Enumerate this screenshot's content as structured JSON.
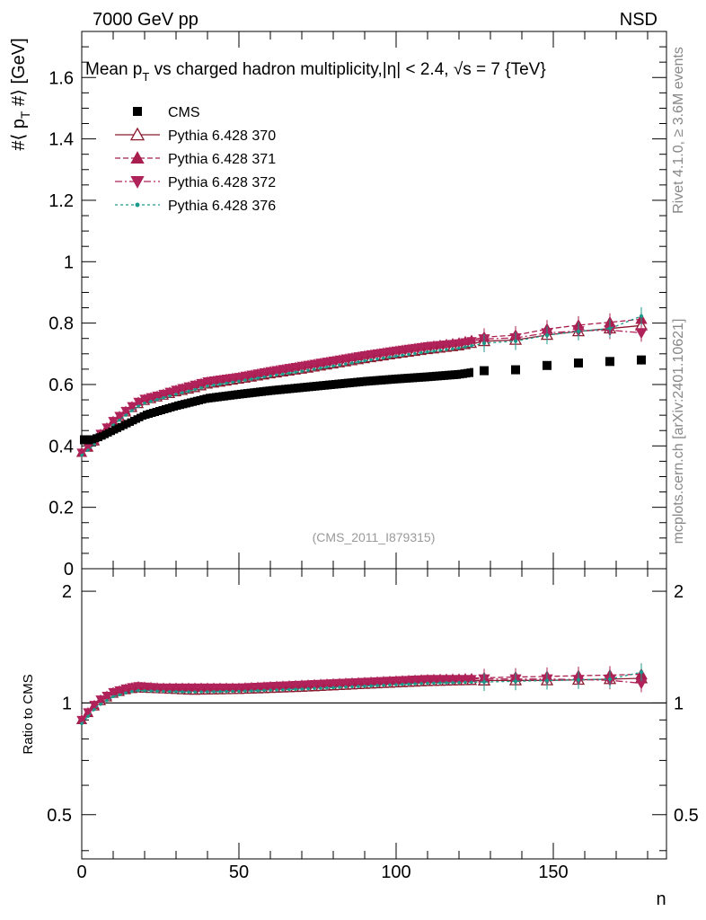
{
  "header": {
    "energy_label": "7000 GeV pp",
    "process_label": "NSD"
  },
  "side_labels": {
    "rivet": "Rivet 4.1.0, ≥ 3.6M events",
    "mcplots": "mcplots.cern.ch [arXiv:2401.10621]"
  },
  "chart_data": [
    {
      "type": "scatter",
      "title": "Mean p_T vs charged hadron multiplicity, |η| < 2.4, √s = 7 {TeV}",
      "title_parts": {
        "a": "Mean p",
        "b": "T",
        "c": " vs charged hadron multiplicity,",
        "d": "|η| < 2.4, √s = 7 {TeV}"
      },
      "xlabel": "n",
      "ylabel": "#⟨ p_T #⟩ [GeV]",
      "ylabel_parts": {
        "a": "#⟨ p",
        "b": "T",
        "c": " #⟩ [GeV]"
      },
      "watermark": "(CMS_2011_I879315)",
      "xlim": [
        0,
        186
      ],
      "ylim": [
        0,
        1.75
      ],
      "x_ticks": [
        0,
        50,
        100,
        150
      ],
      "y_ticks": [
        0,
        0.2,
        0.4,
        0.6,
        0.8,
        1,
        1.2,
        1.4,
        1.6
      ],
      "y_tick_labels": [
        "0",
        "0.2",
        "0.4",
        "0.6",
        "0.8",
        "1",
        "1.2",
        "1.4",
        "1.6"
      ],
      "legend_position": "top-left",
      "legend": [
        "CMS",
        "Pythia 6.428 370",
        "Pythia 6.428 371",
        "Pythia 6.428 372",
        "Pythia 6.428 376"
      ],
      "cms_knots": [
        [
          0,
          0.42
        ],
        [
          3,
          0.42
        ],
        [
          6,
          0.43
        ],
        [
          10,
          0.45
        ],
        [
          15,
          0.475
        ],
        [
          20,
          0.5
        ],
        [
          30,
          0.53
        ],
        [
          40,
          0.555
        ],
        [
          50,
          0.568
        ],
        [
          60,
          0.58
        ],
        [
          70,
          0.59
        ],
        [
          80,
          0.6
        ],
        [
          90,
          0.61
        ],
        [
          100,
          0.618
        ],
        [
          110,
          0.625
        ],
        [
          120,
          0.633
        ],
        [
          128,
          0.645
        ],
        [
          138,
          0.648
        ],
        [
          148,
          0.662
        ],
        [
          158,
          0.67
        ],
        [
          168,
          0.675
        ],
        [
          178,
          0.68
        ]
      ],
      "cms_wide_points": [
        [
          128,
          0.645
        ],
        [
          138,
          0.648
        ],
        [
          148,
          0.662
        ],
        [
          158,
          0.67
        ],
        [
          168,
          0.675
        ],
        [
          178,
          0.68
        ]
      ],
      "series": [
        {
          "name": "Pythia 6.428 370",
          "color": "#8b1a2e",
          "marker": "open-triangle",
          "dash": "",
          "ratio": [
            [
              0,
              0.9
            ],
            [
              5,
              1.0
            ],
            [
              10,
              1.06
            ],
            [
              15,
              1.09
            ],
            [
              18,
              1.095
            ],
            [
              25,
              1.09
            ],
            [
              35,
              1.08
            ],
            [
              50,
              1.085
            ],
            [
              70,
              1.1
            ],
            [
              90,
              1.12
            ],
            [
              110,
              1.14
            ],
            [
              130,
              1.15
            ],
            [
              150,
              1.15
            ],
            [
              170,
              1.16
            ],
            [
              178,
              1.165
            ]
          ],
          "wide_x": [
            128,
            138,
            148,
            158,
            168,
            178
          ]
        },
        {
          "name": "Pythia 6.428 371",
          "color": "#a81e4e",
          "marker": "triangle-up",
          "dash": "6,3",
          "ratio": [
            [
              0,
              0.9
            ],
            [
              5,
              1.01
            ],
            [
              10,
              1.07
            ],
            [
              15,
              1.1
            ],
            [
              18,
              1.11
            ],
            [
              25,
              1.1
            ],
            [
              35,
              1.1
            ],
            [
              50,
              1.1
            ],
            [
              70,
              1.12
            ],
            [
              90,
              1.14
            ],
            [
              110,
              1.16
            ],
            [
              130,
              1.17
            ],
            [
              150,
              1.18
            ],
            [
              170,
              1.19
            ],
            [
              178,
              1.195
            ]
          ],
          "wide_x": [
            128,
            138,
            148,
            158,
            168,
            178
          ]
        },
        {
          "name": "Pythia 6.428 372",
          "color": "#b0225a",
          "marker": "triangle-down",
          "dash": "8,3,2,3",
          "ratio": [
            [
              0,
              0.9
            ],
            [
              5,
              1.01
            ],
            [
              10,
              1.07
            ],
            [
              15,
              1.1
            ],
            [
              18,
              1.11
            ],
            [
              25,
              1.1
            ],
            [
              35,
              1.1
            ],
            [
              50,
              1.1
            ],
            [
              70,
              1.12
            ],
            [
              90,
              1.14
            ],
            [
              110,
              1.16
            ],
            [
              130,
              1.16
            ],
            [
              150,
              1.16
            ],
            [
              170,
              1.15
            ],
            [
              178,
              1.13
            ]
          ],
          "wide_x": [
            128,
            138,
            148,
            158,
            168,
            178
          ]
        },
        {
          "name": "Pythia 6.428 376",
          "color": "#1a9a8a",
          "marker": "dot",
          "dash": "3,3",
          "ratio": [
            [
              0,
              0.88
            ],
            [
              5,
              0.98
            ],
            [
              10,
              1.04
            ],
            [
              15,
              1.07
            ],
            [
              18,
              1.08
            ],
            [
              25,
              1.075
            ],
            [
              35,
              1.07
            ],
            [
              50,
              1.075
            ],
            [
              70,
              1.09
            ],
            [
              90,
              1.11
            ],
            [
              110,
              1.13
            ],
            [
              130,
              1.14
            ],
            [
              150,
              1.15
            ],
            [
              170,
              1.16
            ],
            [
              178,
              1.21
            ]
          ],
          "wide_x": [
            128,
            138,
            148,
            158,
            168,
            178
          ]
        }
      ]
    },
    {
      "type": "line",
      "ylabel": "Ratio to CMS",
      "xlabel": "n",
      "ylim": [
        0.38,
        2.3
      ],
      "y_scale": "log",
      "y_ticks": [
        0.5,
        1,
        2
      ],
      "y_tick_labels": [
        "0.5",
        "1",
        "2"
      ],
      "reference_line": 1
    }
  ]
}
